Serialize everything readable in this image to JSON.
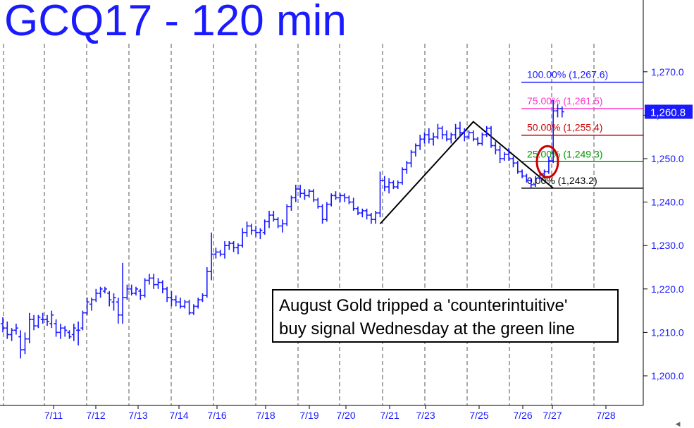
{
  "chart_data": {
    "type": "bar",
    "title": "GCQ17 - 120 min",
    "ylim": [
      1195.0,
      1274.5
    ],
    "yticks": [
      {
        "value": 1200,
        "label": "1,200.0"
      },
      {
        "value": 1210,
        "label": "1,210.0"
      },
      {
        "value": 1220,
        "label": "1,220.0"
      },
      {
        "value": 1230,
        "label": "1,230.0"
      },
      {
        "value": 1240,
        "label": "1,240.0"
      },
      {
        "value": 1250,
        "label": "1,250.0"
      },
      {
        "value": 1260,
        "label": "1,260.0"
      },
      {
        "value": 1270,
        "label": "1,270.0"
      }
    ],
    "xticks": [
      "7/11",
      "7/12",
      "7/13",
      "7/14",
      "7/16",
      "7/18",
      "7/19",
      "7/20",
      "7/21",
      "7/23",
      "7/25",
      "7/26",
      "7/27",
      "7/28"
    ],
    "last_price_label": "1,260.8",
    "last_price": 1260.8,
    "fib_levels": [
      {
        "label": "100.00% (1,267.6)",
        "value": 1267.6,
        "color": "#1a1aff"
      },
      {
        "label": "75.00% (1,261.5)",
        "value": 1261.5,
        "color": "#ff33cc"
      },
      {
        "label": "50.00% (1,255.4)",
        "value": 1255.4,
        "color": "#cc0000"
      },
      {
        "label": "25.00% (1,249.3)",
        "value": 1249.3,
        "color": "#009900"
      },
      {
        "label": "0.00% (1,243.2)",
        "value": 1243.2,
        "color": "#000000"
      }
    ],
    "abc_pattern": [
      {
        "bar": 85,
        "price": 1235.0
      },
      {
        "bar": 106,
        "price": 1258.5
      },
      {
        "bar": 124,
        "price": 1243.2
      }
    ],
    "annotation": [
      "August Gold tripped a 'counterintuitive'",
      "buy signal Wednesday at the green line"
    ],
    "colors": {
      "bars": "#1a1aff",
      "grid": "#555555",
      "circle": "#cc0000",
      "last_price_box": "#1a1aff"
    },
    "ohlc": [
      [
        1212,
        1213.5,
        1210,
        1211
      ],
      [
        1211,
        1212.5,
        1208.5,
        1209.5
      ],
      [
        1209.5,
        1211,
        1208,
        1210.5
      ],
      [
        1210.5,
        1212,
        1209.5,
        1211
      ],
      [
        1209,
        1210.5,
        1204,
        1206
      ],
      [
        1206,
        1210,
        1205,
        1208.5
      ],
      [
        1208.5,
        1214.5,
        1207.5,
        1213
      ],
      [
        1213,
        1214,
        1210.5,
        1211.5
      ],
      [
        1211.5,
        1214,
        1211,
        1213.5
      ],
      [
        1213,
        1214.5,
        1212,
        1213
      ],
      [
        1213,
        1214,
        1211.5,
        1212.5
      ],
      [
        1212,
        1215,
        1211,
        1214
      ],
      [
        1212,
        1213,
        1209,
        1210
      ],
      [
        1210,
        1212,
        1208.5,
        1211
      ],
      [
        1211,
        1211.5,
        1209,
        1210.5
      ],
      [
        1210,
        1210.5,
        1208.5,
        1209
      ],
      [
        1209.5,
        1212,
        1208,
        1211
      ],
      [
        1210.5,
        1212.5,
        1207,
        1210.5
      ],
      [
        1211,
        1215,
        1210.5,
        1214.5
      ],
      [
        1214.5,
        1218,
        1214,
        1217
      ],
      [
        1216.5,
        1218,
        1215,
        1217.5
      ],
      [
        1217.5,
        1220,
        1217,
        1219
      ],
      [
        1219,
        1220.5,
        1218,
        1220
      ],
      [
        1219.5,
        1220.5,
        1219,
        1220
      ],
      [
        1219,
        1219.5,
        1216,
        1217.5
      ],
      [
        1217,
        1219,
        1215,
        1218
      ],
      [
        1217,
        1218,
        1212,
        1214
      ],
      [
        1214,
        1226,
        1212,
        1218
      ],
      [
        1218,
        1221,
        1217.5,
        1220
      ],
      [
        1220,
        1221,
        1218.5,
        1219
      ],
      [
        1219,
        1220.5,
        1218.5,
        1220
      ],
      [
        1219.5,
        1220,
        1217.5,
        1218.5
      ],
      [
        1218.5,
        1222.5,
        1218,
        1222
      ],
      [
        1222,
        1223.5,
        1221,
        1222.5
      ],
      [
        1222.5,
        1223.5,
        1220,
        1221
      ],
      [
        1221,
        1222.5,
        1220,
        1221.5
      ],
      [
        1221.5,
        1222,
        1219,
        1220
      ],
      [
        1220,
        1220.5,
        1217,
        1218
      ],
      [
        1218,
        1219.5,
        1216,
        1217.5
      ],
      [
        1217.5,
        1218.5,
        1216,
        1217
      ],
      [
        1217,
        1218,
        1215.5,
        1216
      ],
      [
        1216,
        1217.5,
        1215.5,
        1217
      ],
      [
        1217,
        1217.5,
        1214,
        1214.5
      ],
      [
        1214.5,
        1216.5,
        1214,
        1216
      ],
      [
        1216,
        1218,
        1215.5,
        1217.5
      ],
      [
        1217.5,
        1219,
        1217,
        1218.5
      ],
      [
        1218.5,
        1225,
        1218,
        1224
      ],
      [
        1224,
        1233,
        1222,
        1228
      ],
      [
        1228,
        1229.5,
        1227,
        1228.5
      ],
      [
        1228.5,
        1229,
        1227.5,
        1228
      ],
      [
        1228,
        1231,
        1227,
        1230
      ],
      [
        1230,
        1231,
        1229,
        1230.5
      ],
      [
        1230.5,
        1231,
        1228.5,
        1229.5
      ],
      [
        1229.5,
        1230.5,
        1228,
        1230
      ],
      [
        1230,
        1234,
        1229.5,
        1233
      ],
      [
        1233,
        1235.5,
        1232,
        1234.5
      ],
      [
        1234.5,
        1235,
        1232.5,
        1233.5
      ],
      [
        1233.5,
        1234.5,
        1232,
        1233
      ],
      [
        1233,
        1234,
        1231.5,
        1233.5
      ],
      [
        1233,
        1236,
        1232.5,
        1235.5
      ],
      [
        1235.5,
        1238,
        1234,
        1237
      ],
      [
        1237,
        1238,
        1235.5,
        1236
      ],
      [
        1236,
        1236.5,
        1234,
        1234.5
      ],
      [
        1234.5,
        1236,
        1233,
        1235
      ],
      [
        1235,
        1239.5,
        1234.5,
        1239
      ],
      [
        1239,
        1241.5,
        1238,
        1241
      ],
      [
        1241,
        1244,
        1240,
        1243
      ],
      [
        1243,
        1244,
        1241,
        1242
      ],
      [
        1242,
        1243,
        1240.5,
        1241.5
      ],
      [
        1241.5,
        1243,
        1241,
        1242.5
      ],
      [
        1242.5,
        1243,
        1240,
        1240.5
      ],
      [
        1240.5,
        1241,
        1238.5,
        1239
      ],
      [
        1239,
        1239.5,
        1235,
        1236
      ],
      [
        1236,
        1240,
        1235.5,
        1239.5
      ],
      [
        1239.5,
        1242,
        1239,
        1241.5
      ],
      [
        1241.5,
        1242.5,
        1240.5,
        1241
      ],
      [
        1241,
        1242,
        1240,
        1241.5
      ],
      [
        1241.5,
        1242,
        1240,
        1241
      ],
      [
        1241,
        1241.5,
        1239.5,
        1240
      ],
      [
        1240,
        1241,
        1238,
        1238.5
      ],
      [
        1238.5,
        1239,
        1237,
        1237.5
      ],
      [
        1237.5,
        1238.5,
        1236.5,
        1238
      ],
      [
        1238,
        1238.5,
        1236,
        1237
      ],
      [
        1237,
        1237.5,
        1235,
        1236
      ],
      [
        1236,
        1238,
        1235,
        1237.5
      ],
      [
        1237.5,
        1247,
        1236.5,
        1245
      ],
      [
        1245,
        1246,
        1242.5,
        1243.5
      ],
      [
        1243.5,
        1245.5,
        1242,
        1244.5
      ],
      [
        1244.5,
        1245,
        1243,
        1243.5
      ],
      [
        1243.5,
        1245,
        1243,
        1244.5
      ],
      [
        1244.5,
        1248,
        1244,
        1247.5
      ],
      [
        1247.5,
        1249.5,
        1246.5,
        1249
      ],
      [
        1249,
        1252,
        1248,
        1251.5
      ],
      [
        1251.5,
        1253.5,
        1250.5,
        1253
      ],
      [
        1253,
        1255.5,
        1252,
        1254.5
      ],
      [
        1254.5,
        1256,
        1253.5,
        1255.5
      ],
      [
        1255.5,
        1257,
        1253.5,
        1254.5
      ],
      [
        1254.5,
        1256,
        1253,
        1255
      ],
      [
        1255,
        1258,
        1254.5,
        1257
      ],
      [
        1257,
        1257.5,
        1254.5,
        1255.5
      ],
      [
        1255.5,
        1256.5,
        1254,
        1254.5
      ],
      [
        1254.5,
        1256,
        1253.5,
        1255.5
      ],
      [
        1255.5,
        1258,
        1254.5,
        1257
      ],
      [
        1257,
        1258.5,
        1255,
        1256
      ],
      [
        1256,
        1257,
        1254,
        1255
      ],
      [
        1255,
        1256.5,
        1254.5,
        1256
      ],
      [
        1256,
        1256.5,
        1254,
        1254.5
      ],
      [
        1254.5,
        1255,
        1253,
        1253.5
      ],
      [
        1253.5,
        1256,
        1253,
        1255.5
      ],
      [
        1255.5,
        1257.5,
        1255,
        1257
      ],
      [
        1257,
        1257.5,
        1252.5,
        1253
      ],
      [
        1253,
        1254,
        1251,
        1252
      ],
      [
        1252,
        1253,
        1249,
        1250
      ],
      [
        1250,
        1251.5,
        1249.5,
        1251
      ],
      [
        1251,
        1252.5,
        1249.5,
        1250
      ],
      [
        1250,
        1250.5,
        1248,
        1249
      ],
      [
        1249,
        1249.5,
        1246.5,
        1247
      ],
      [
        1247,
        1247.5,
        1245.5,
        1246
      ],
      [
        1246,
        1246.5,
        1244.5,
        1245
      ],
      [
        1245,
        1245.5,
        1243.2,
        1244
      ],
      [
        1244,
        1246,
        1243.5,
        1245.5
      ],
      [
        1245.5,
        1247,
        1245,
        1246.5
      ],
      [
        1246.5,
        1247.5,
        1246,
        1247
      ],
      [
        1247,
        1250.5,
        1246.5,
        1249.5
      ],
      [
        1249.5,
        1263.5,
        1249,
        1261
      ],
      [
        1261,
        1262.5,
        1259.5,
        1261.5
      ],
      [
        1261.5,
        1262,
        1259.5,
        1260.8
      ]
    ]
  }
}
